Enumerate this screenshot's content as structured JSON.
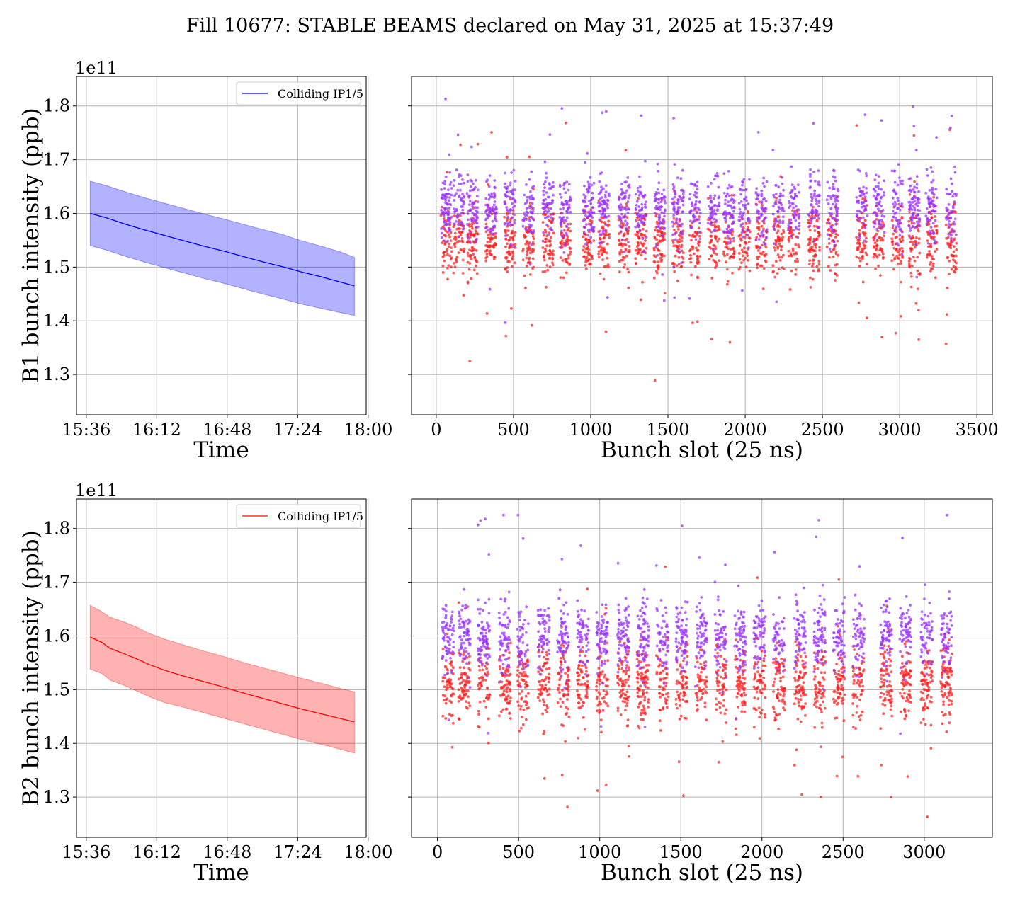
{
  "figure_title": "Fill 10677: STABLE BEAMS declared on May 31, 2025 at 15:37:49",
  "colors": {
    "b1": "#0000ff",
    "b2": "#ff0000",
    "scatter_red": "#ff2020",
    "scatter_purple": "#9933ff",
    "grid": "#b0b0b0"
  },
  "chart_data": [
    {
      "type": "line",
      "panel": "B1 time evolution",
      "title": "",
      "xlabel": "Time",
      "ylabel": "B1 bunch intensity (ppb)",
      "y_offset_label": "1e11",
      "xlim_minutes": [
        -5,
        143
      ],
      "ylim": [
        1.225,
        1.855
      ],
      "x_ticks": [
        "15:36",
        "16:12",
        "16:48",
        "17:24",
        "18:00"
      ],
      "x_tick_minutes": [
        0,
        36,
        72,
        108,
        144
      ],
      "y_ticks": [
        "1.3",
        "1.4",
        "1.5",
        "1.6",
        "1.7",
        "1.8"
      ],
      "y_tick_values": [
        1.3,
        1.4,
        1.5,
        1.6,
        1.7,
        1.8
      ],
      "legend": "Colliding IP1/5",
      "legend_position": "top-right",
      "grid": true,
      "series": [
        {
          "name": "Colliding IP1/5",
          "x_minutes": [
            2,
            10,
            20,
            30,
            40,
            50,
            60,
            70,
            80,
            90,
            100,
            110,
            120,
            130,
            137
          ],
          "mean": [
            1.6,
            1.592,
            1.58,
            1.569,
            1.559,
            1.549,
            1.539,
            1.53,
            1.52,
            1.51,
            1.501,
            1.491,
            1.482,
            1.472,
            1.465
          ],
          "upper": [
            1.66,
            1.652,
            1.64,
            1.629,
            1.619,
            1.609,
            1.599,
            1.59,
            1.58,
            1.57,
            1.561,
            1.549,
            1.539,
            1.528,
            1.518
          ],
          "lower": [
            1.54,
            1.532,
            1.52,
            1.509,
            1.499,
            1.489,
            1.479,
            1.47,
            1.46,
            1.45,
            1.441,
            1.431,
            1.423,
            1.415,
            1.41
          ]
        }
      ]
    },
    {
      "type": "scatter",
      "panel": "B1 bunch-by-bunch",
      "title": "",
      "xlabel": "Bunch slot (25 ns)",
      "xlim": [
        -160,
        3600
      ],
      "ylim": [
        1.225,
        1.855
      ],
      "x_ticks": [
        0,
        500,
        1000,
        1500,
        2000,
        2500,
        3000,
        3500
      ],
      "grid": true,
      "trains_start": [
        30,
        110,
        200,
        320,
        440,
        560,
        690,
        800,
        950,
        1050,
        1180,
        1290,
        1410,
        1530,
        1640,
        1760,
        1860,
        1960,
        2070,
        2180,
        2280,
        2410,
        2530,
        2720,
        2830,
        2950,
        3060,
        3170,
        3300
      ],
      "series": [
        {
          "name": "",
          "color": "#ff2020",
          "mean": 1.548,
          "std": 0.045,
          "count": 1700
        },
        {
          "name": "",
          "color": "#9933ff",
          "mean": 1.61,
          "std": 0.042,
          "count": 1700
        }
      ]
    },
    {
      "type": "line",
      "panel": "B2 time evolution",
      "title": "",
      "xlabel": "Time",
      "ylabel": "B2 bunch intensity (ppb)",
      "y_offset_label": "1e11",
      "xlim_minutes": [
        -5,
        143
      ],
      "ylim": [
        1.225,
        1.855
      ],
      "x_ticks": [
        "15:36",
        "16:12",
        "16:48",
        "17:24",
        "18:00"
      ],
      "x_tick_minutes": [
        0,
        36,
        72,
        108,
        144
      ],
      "y_ticks": [
        "1.3",
        "1.4",
        "1.5",
        "1.6",
        "1.7",
        "1.8"
      ],
      "y_tick_values": [
        1.3,
        1.4,
        1.5,
        1.6,
        1.7,
        1.8
      ],
      "legend": "Colliding IP1/5",
      "legend_position": "top-right",
      "grid": true,
      "series": [
        {
          "name": "Colliding IP1/5",
          "x_minutes": [
            2,
            8,
            12,
            20,
            26,
            32,
            40,
            50,
            60,
            70,
            80,
            90,
            100,
            110,
            120,
            130,
            137
          ],
          "mean": [
            1.598,
            1.588,
            1.577,
            1.566,
            1.557,
            1.547,
            1.536,
            1.525,
            1.515,
            1.505,
            1.494,
            1.484,
            1.474,
            1.464,
            1.455,
            1.446,
            1.44
          ],
          "upper": [
            1.657,
            1.645,
            1.635,
            1.625,
            1.616,
            1.605,
            1.594,
            1.583,
            1.572,
            1.562,
            1.551,
            1.541,
            1.531,
            1.521,
            1.512,
            1.502,
            1.496
          ],
          "lower": [
            1.538,
            1.53,
            1.518,
            1.507,
            1.497,
            1.487,
            1.476,
            1.467,
            1.457,
            1.447,
            1.437,
            1.427,
            1.417,
            1.407,
            1.398,
            1.389,
            1.382
          ]
        }
      ]
    },
    {
      "type": "scatter",
      "panel": "B2 bunch-by-bunch",
      "title": "",
      "xlabel": "Bunch slot (25 ns)",
      "xlim": [
        -160,
        3420
      ],
      "ylim": [
        1.225,
        1.855
      ],
      "x_ticks": [
        0,
        500,
        1000,
        1500,
        2000,
        2500,
        3000
      ],
      "grid": true,
      "trains_start": [
        30,
        130,
        250,
        380,
        490,
        620,
        740,
        860,
        980,
        1110,
        1230,
        1350,
        1470,
        1590,
        1710,
        1830,
        1950,
        2070,
        2200,
        2320,
        2440,
        2560,
        2730,
        2850,
        2980,
        3100
      ],
      "series": [
        {
          "name": "",
          "color": "#ff2020",
          "mean": 1.512,
          "std": 0.048,
          "count": 1700
        },
        {
          "name": "",
          "color": "#9933ff",
          "mean": 1.598,
          "std": 0.046,
          "count": 1600
        }
      ]
    }
  ]
}
